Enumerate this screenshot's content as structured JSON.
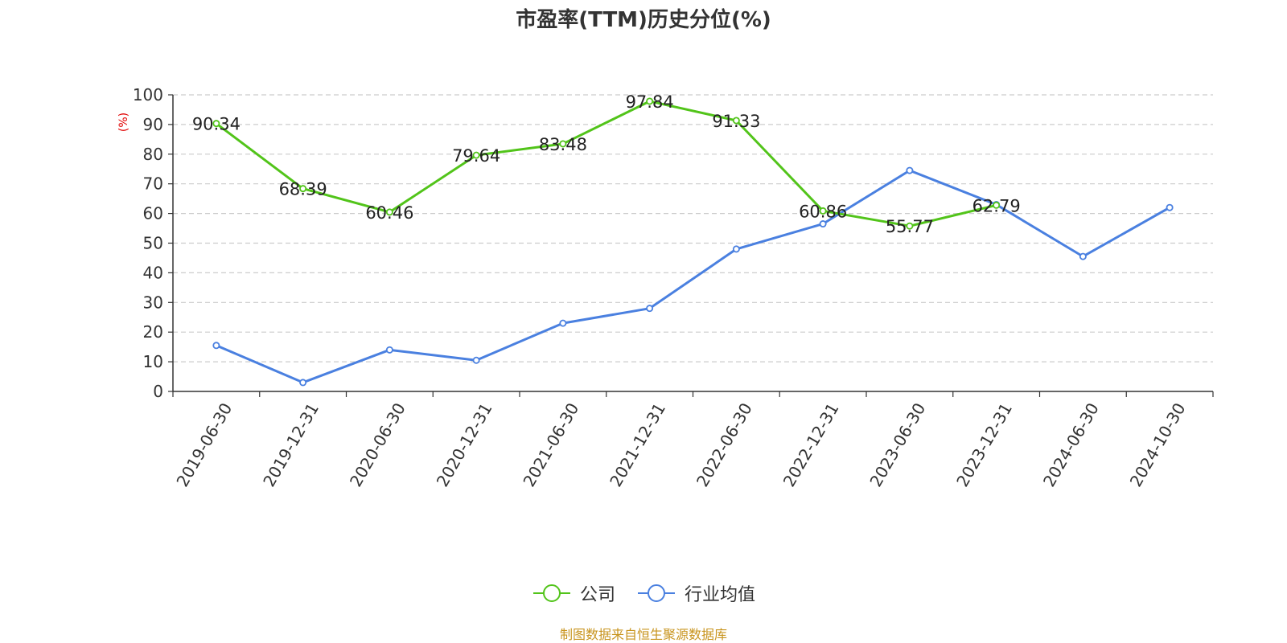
{
  "chart_data": {
    "type": "line",
    "title": "市盈率(TTM)历史分位(%)",
    "ylabel": "(%)",
    "xlabel": "",
    "ylim": [
      0,
      100
    ],
    "yticks": [
      0,
      10,
      20,
      30,
      40,
      50,
      60,
      70,
      80,
      90,
      100
    ],
    "categories": [
      "2019-06-30",
      "2019-12-31",
      "2020-06-30",
      "2020-12-31",
      "2021-06-30",
      "2021-12-31",
      "2022-06-30",
      "2022-12-31",
      "2023-06-30",
      "2023-12-31",
      "2024-06-30",
      "2024-10-30"
    ],
    "grid": true,
    "legend_position": "bottom-center",
    "series": [
      {
        "name": "公司",
        "color": "#52c41a",
        "show_labels": true,
        "values": [
          90.34,
          68.39,
          60.46,
          79.64,
          83.48,
          97.84,
          91.33,
          60.86,
          55.77,
          62.79,
          null,
          null
        ]
      },
      {
        "name": "行业均值",
        "color": "#4a80e0",
        "show_labels": false,
        "values": [
          15.5,
          3.0,
          14.0,
          10.5,
          23.0,
          28.0,
          48.0,
          56.5,
          74.5,
          63.0,
          45.5,
          62.0
        ]
      }
    ]
  },
  "source_text": "制图数据来自恒生聚源数据库",
  "colors": {
    "title": "#333333",
    "axis": "#333333",
    "grid": "#cccccc",
    "ylabel": "#e00000",
    "source": "#c8941e"
  }
}
